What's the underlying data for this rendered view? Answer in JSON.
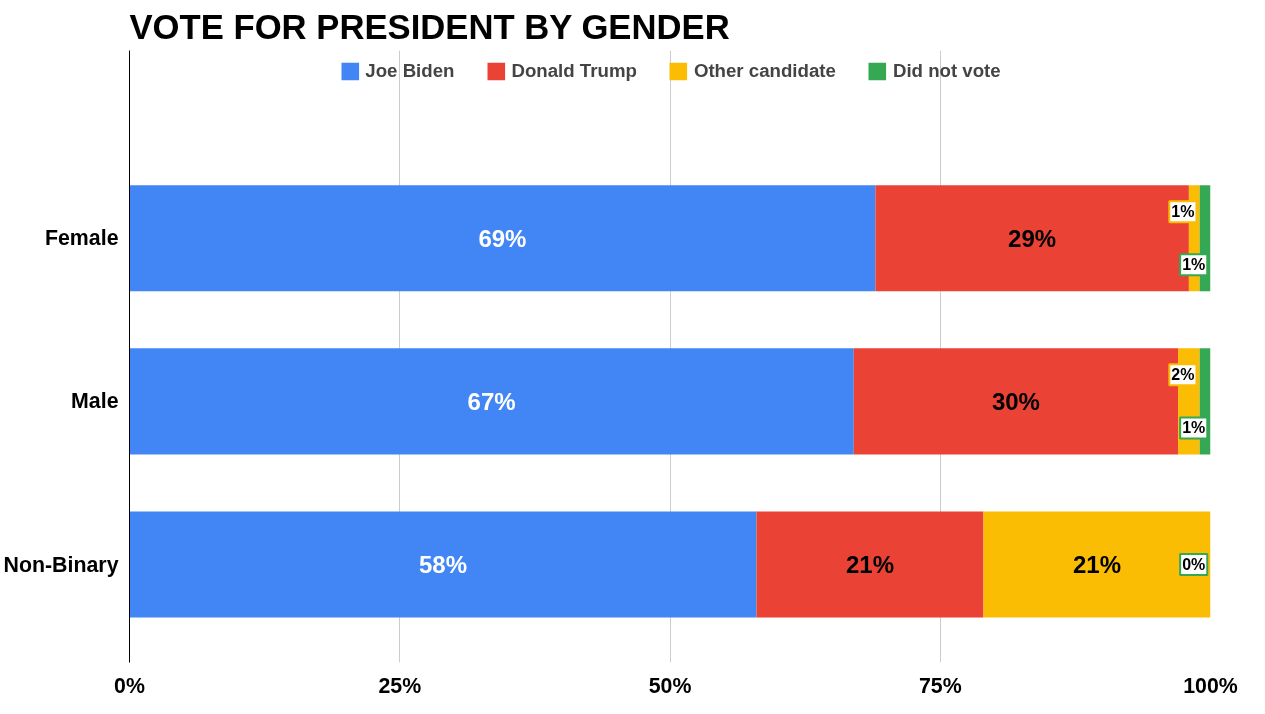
{
  "chart_data": {
    "type": "bar",
    "orientation": "horizontal",
    "stacked": true,
    "title": "VOTE FOR PRESIDENT BY GENDER",
    "categories": [
      "Female",
      "Male",
      "Non-Binary"
    ],
    "series": [
      {
        "name": "Joe Biden",
        "color": "#4285f4",
        "values": [
          69,
          67,
          58
        ],
        "value_labels": [
          "69%",
          "67%",
          "58%"
        ]
      },
      {
        "name": "Donald Trump",
        "color": "#ea4335",
        "values": [
          29,
          30,
          21
        ],
        "value_labels": [
          "29%",
          "30%",
          "21%"
        ]
      },
      {
        "name": "Other candidate",
        "color": "#fbbc04",
        "values": [
          1,
          2,
          21
        ],
        "value_labels": [
          "1%",
          "2%",
          "21%"
        ]
      },
      {
        "name": "Did not vote",
        "color": "#34a853",
        "values": [
          1,
          1,
          0
        ],
        "value_labels": [
          "1%",
          "1%",
          "0%"
        ]
      }
    ],
    "xlim": [
      0,
      100
    ],
    "xticks": [
      {
        "value": 0,
        "label": "0%"
      },
      {
        "value": 25,
        "label": "25%"
      },
      {
        "value": 50,
        "label": "50%"
      },
      {
        "value": 75,
        "label": "75%"
      },
      {
        "value": 100,
        "label": "100%"
      }
    ],
    "grid": "x",
    "legend": "top"
  }
}
